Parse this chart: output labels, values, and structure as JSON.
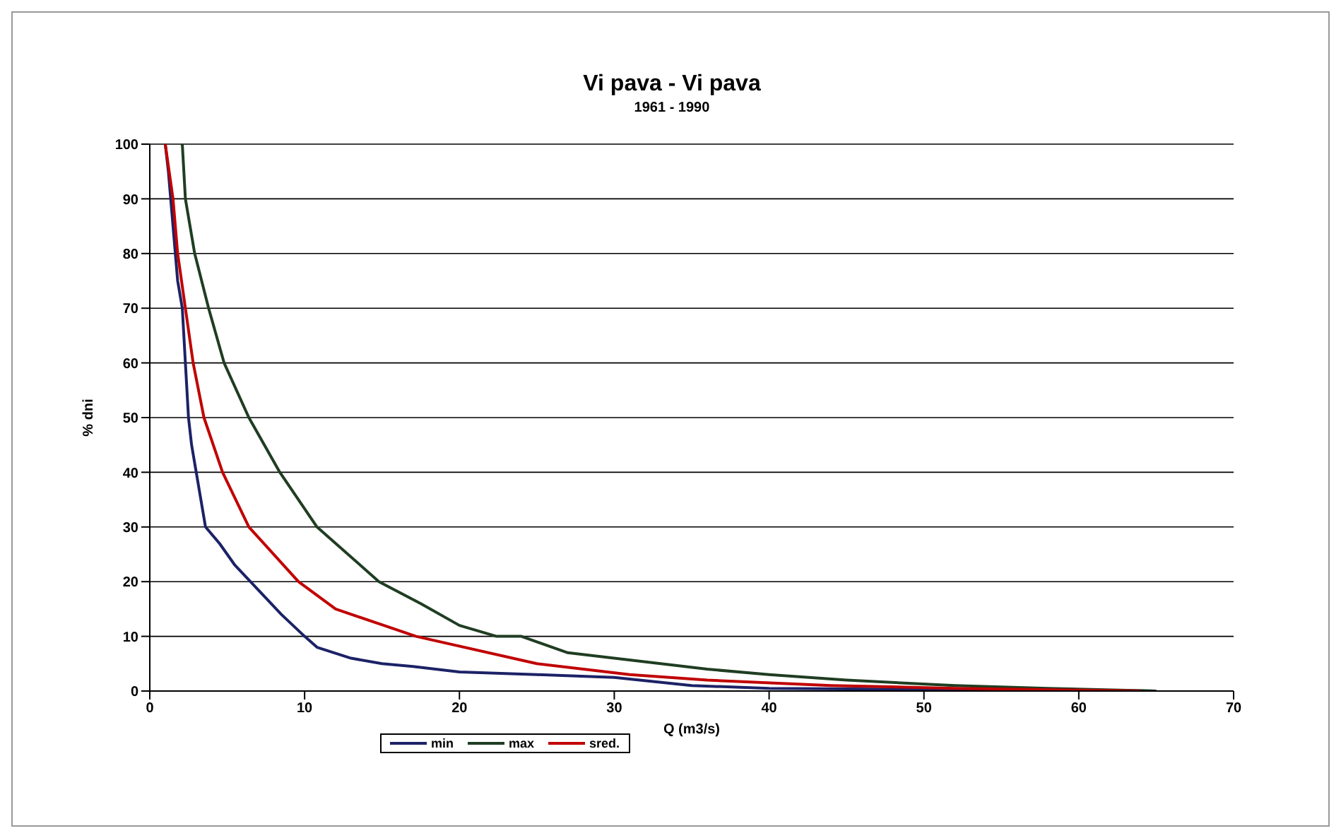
{
  "chart_data": {
    "type": "line",
    "title": "Vi pava  -  Vi pava",
    "subtitle": "1961 - 1990",
    "xlabel": "Q (m3/s)",
    "ylabel": "% dni",
    "xlim": [
      0,
      70
    ],
    "xticks": [
      0,
      10,
      20,
      30,
      40,
      50,
      60,
      70
    ],
    "ylim": [
      0,
      100
    ],
    "yticks": [
      0,
      10,
      20,
      30,
      40,
      50,
      60,
      70,
      80,
      90,
      100
    ],
    "grid": "y",
    "legend": "bottom",
    "marker": "none",
    "line_style": "solid",
    "series": [
      {
        "name": "min",
        "color": "#1c2266",
        "x": [
          1,
          1.2,
          1.5,
          1.8,
          2.1,
          2.3,
          2.5,
          2.7,
          3,
          3.6,
          4.5,
          5.5,
          6.5,
          8.5,
          10,
          10.8,
          13,
          15,
          17,
          20,
          25,
          30,
          35,
          40,
          50,
          60,
          65
        ],
        "values": [
          100,
          95,
          85,
          75,
          70,
          60,
          50,
          45,
          40,
          30,
          27,
          23,
          20,
          14,
          10,
          8,
          6,
          5,
          4.5,
          3.5,
          3,
          2.5,
          1,
          0.5,
          0.3,
          0.2,
          0
        ]
      },
      {
        "name": "max",
        "color": "#1f3d22",
        "x": [
          2,
          2.1,
          2.3,
          2.9,
          3.8,
          4.8,
          6.4,
          8.4,
          10.8,
          14.8,
          17.5,
          20,
          22.4,
          24,
          27,
          33,
          36,
          40,
          45,
          52,
          58,
          65
        ],
        "values": [
          100,
          100,
          90,
          80,
          70,
          60,
          50,
          40,
          30,
          20,
          16,
          12,
          10,
          10,
          7,
          5,
          4,
          3,
          2,
          1,
          0.5,
          0
        ]
      },
      {
        "name": "sred.",
        "color": "#c00000",
        "x": [
          1,
          1.5,
          1.8,
          2.3,
          2.8,
          3.5,
          4.7,
          6.4,
          9.6,
          12,
          17.2,
          25,
          31,
          36,
          44,
          52,
          64
        ],
        "values": [
          100,
          90,
          80,
          70,
          60,
          50,
          40,
          30,
          20,
          15,
          10,
          5,
          3,
          2,
          1,
          0.5,
          0
        ]
      }
    ]
  }
}
